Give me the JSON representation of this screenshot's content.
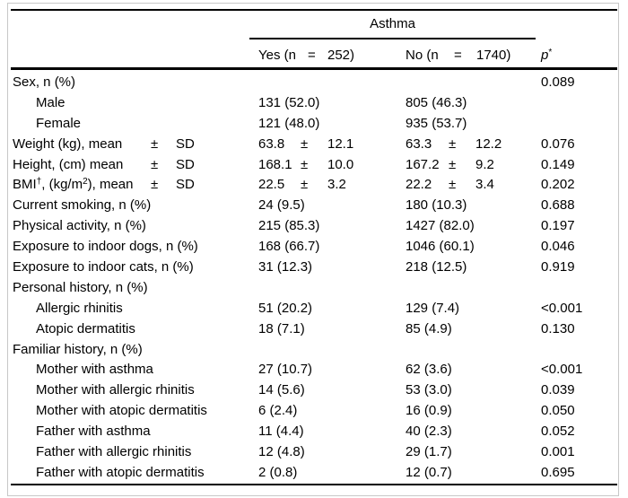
{
  "colors": {
    "background": "#ffffff",
    "text": "#000000",
    "rule": "#000000",
    "frame_border": "#c8c8c8"
  },
  "header": {
    "group_label": "Asthma",
    "col_yes": {
      "prefix": "Yes (n",
      "eq": "=",
      "n": "252)"
    },
    "col_no": {
      "prefix": "No (n",
      "eq": "=",
      "n": "1740)"
    },
    "col_p": {
      "base": "p",
      "sup": "*"
    }
  },
  "rows": [
    {
      "label": [
        {
          "t": "Sex, n (%)"
        }
      ],
      "indent": 0,
      "p": "0.089"
    },
    {
      "label": [
        {
          "t": "Male"
        }
      ],
      "indent": 1,
      "yes": {
        "main": "131 (52.0)"
      },
      "no": {
        "main": "805 (46.3)"
      }
    },
    {
      "label": [
        {
          "t": "Female"
        }
      ],
      "indent": 1,
      "yes": {
        "main": "121 (48.0)"
      },
      "no": {
        "main": "935 (53.7)"
      }
    },
    {
      "label": [
        {
          "t": "Weight (kg), mean"
        }
      ],
      "indent": 0,
      "label_pm": "±",
      "label_sd": "SD",
      "yes": {
        "main": "63.8",
        "pm": "±",
        "sd": "12.1"
      },
      "no": {
        "main": "63.3",
        "pm": "±",
        "sd": "12.2"
      },
      "p": "0.076"
    },
    {
      "label": [
        {
          "t": "Height, (cm) mean"
        }
      ],
      "indent": 0,
      "label_pm": "±",
      "label_sd": "SD",
      "yes": {
        "main": "168.1",
        "pm": "±",
        "sd": "10.0"
      },
      "no": {
        "main": "167.2",
        "pm": "±",
        "sd": "9.2"
      },
      "p": "0.149"
    },
    {
      "label": [
        {
          "t": "BMI"
        },
        {
          "sup": "†"
        },
        {
          "t": ", (kg/m"
        },
        {
          "sup": "2"
        },
        {
          "t": "), mean"
        }
      ],
      "indent": 0,
      "label_pm": "±",
      "label_sd": "SD",
      "yes": {
        "main": "22.5",
        "pm": "±",
        "sd": "3.2"
      },
      "no": {
        "main": "22.2",
        "pm": "±",
        "sd": "3.4"
      },
      "p": "0.202"
    },
    {
      "label": [
        {
          "t": "Current smoking, n (%)"
        }
      ],
      "indent": 0,
      "yes": {
        "main": "24 (9.5)"
      },
      "no": {
        "main": "180 (10.3)"
      },
      "p": "0.688"
    },
    {
      "label": [
        {
          "t": "Physical activity, n (%)"
        }
      ],
      "indent": 0,
      "yes": {
        "main": "215 (85.3)"
      },
      "no": {
        "main": "1427 (82.0)"
      },
      "p": "0.197"
    },
    {
      "label": [
        {
          "t": "Exposure to indoor dogs, n (%)"
        }
      ],
      "indent": 0,
      "yes": {
        "main": "168 (66.7)"
      },
      "no": {
        "main": "1046 (60.1)"
      },
      "p": "0.046"
    },
    {
      "label": [
        {
          "t": "Exposure to indoor cats, n (%)"
        }
      ],
      "indent": 0,
      "yes": {
        "main": "31 (12.3)"
      },
      "no": {
        "main": "218 (12.5)"
      },
      "p": "0.919"
    },
    {
      "label": [
        {
          "t": "Personal history, n (%)"
        }
      ],
      "indent": 0
    },
    {
      "label": [
        {
          "t": "Allergic rhinitis"
        }
      ],
      "indent": 1,
      "yes": {
        "main": "51 (20.2)"
      },
      "no": {
        "main": "129 (7.4)"
      },
      "p": "<0.001"
    },
    {
      "label": [
        {
          "t": "Atopic dermatitis"
        }
      ],
      "indent": 1,
      "yes": {
        "main": "18 (7.1)"
      },
      "no": {
        "main": "85 (4.9)"
      },
      "p": "0.130"
    },
    {
      "label": [
        {
          "t": "Familiar history, n (%)"
        }
      ],
      "indent": 0
    },
    {
      "label": [
        {
          "t": "Mother with asthma"
        }
      ],
      "indent": 1,
      "yes": {
        "main": "27 (10.7)"
      },
      "no": {
        "main": "62 (3.6)"
      },
      "p": "<0.001"
    },
    {
      "label": [
        {
          "t": "Mother with allergic rhinitis"
        }
      ],
      "indent": 1,
      "yes": {
        "main": "14 (5.6)"
      },
      "no": {
        "main": "53 (3.0)"
      },
      "p": "0.039"
    },
    {
      "label": [
        {
          "t": "Mother with atopic dermatitis"
        }
      ],
      "indent": 1,
      "yes": {
        "main": "6 (2.4)"
      },
      "no": {
        "main": "16 (0.9)"
      },
      "p": "0.050"
    },
    {
      "label": [
        {
          "t": "Father with asthma"
        }
      ],
      "indent": 1,
      "yes": {
        "main": "11 (4.4)"
      },
      "no": {
        "main": "40 (2.3)"
      },
      "p": "0.052"
    },
    {
      "label": [
        {
          "t": "Father with allergic rhinitis"
        }
      ],
      "indent": 1,
      "yes": {
        "main": "12 (4.8)"
      },
      "no": {
        "main": "29 (1.7)"
      },
      "p": "0.001"
    },
    {
      "label": [
        {
          "t": "Father with atopic dermatitis"
        }
      ],
      "indent": 1,
      "yes": {
        "main": "2 (0.8)"
      },
      "no": {
        "main": "12 (0.7)"
      },
      "p": "0.695"
    }
  ]
}
